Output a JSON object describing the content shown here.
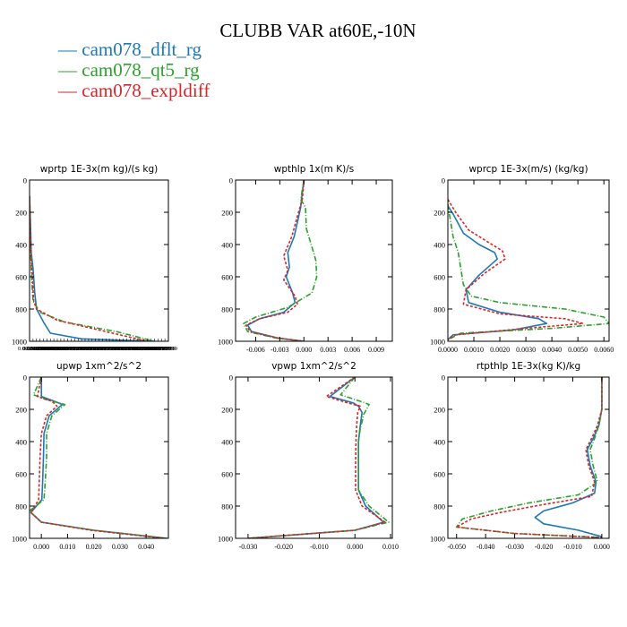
{
  "title": "CLUBB VAR at60E,-10N",
  "legend": [
    {
      "name": "cam078_dflt_rg",
      "color": "#1f77b4"
    },
    {
      "name": "cam078_qt5_rg",
      "color": "#2ca02c"
    },
    {
      "name": "cam078_expldiff",
      "color": "#d62728"
    }
  ],
  "chart_data": [
    {
      "type": "line",
      "title": "wprtp   1E-3x(m kg)/(s kg)",
      "xlim": [
        0.0,
        0.04
      ],
      "ylim": [
        1000,
        0
      ],
      "yticks": [
        0,
        200,
        400,
        600,
        800,
        1000
      ],
      "xtick_labels": [
        "0.000000",
        "0.000999999",
        "0.00199999",
        "0.00299999",
        "0.00399999",
        "0.00499999",
        "0.00599999",
        "0.00699999",
        "0.00799999",
        "0.00899999",
        "0.00999999",
        "0.0109999",
        "0.0119999",
        "0.0129999",
        "0.0139999",
        "0.0149999",
        "0.0159999",
        "0.0169999",
        "0.0179999",
        "0.0189999",
        "0.0199999",
        "0.0209999",
        "0.0219999",
        "0.0229999",
        "0.0239999",
        "0.0249999",
        "0.0259999",
        "0.0269999",
        "0.0279999",
        "0.0289999",
        "0.0299999",
        "0.0309999",
        "0.0319999",
        "0.0329999",
        "0.0339999",
        "0.0349999",
        "0.0359999",
        "0.0369999",
        "0.0379999",
        "0.0389999",
        "0.0399999"
      ],
      "series": [
        {
          "name": "cam078_dflt_rg",
          "x": [
            0.0,
            0.0003,
            0.0005,
            0.001,
            0.0015,
            0.002,
            0.004,
            0.006,
            0.015,
            0.036
          ],
          "y": [
            100,
            300,
            450,
            550,
            700,
            800,
            880,
            950,
            985,
            1000
          ]
        },
        {
          "name": "cam078_qt5_rg",
          "x": [
            0.0,
            0.0001,
            0.0003,
            0.0006,
            0.001,
            0.003,
            0.01,
            0.025,
            0.036
          ],
          "y": [
            100,
            300,
            450,
            600,
            750,
            820,
            880,
            940,
            1000
          ]
        },
        {
          "name": "cam078_expldiff",
          "x": [
            0.0,
            0.0002,
            0.0004,
            0.0008,
            0.0012,
            0.002,
            0.008,
            0.02,
            0.034
          ],
          "y": [
            100,
            300,
            450,
            600,
            750,
            800,
            870,
            930,
            1000
          ]
        }
      ]
    },
    {
      "type": "line",
      "title": "wpthlp   1x(m K)/s",
      "xlim": [
        -0.0085,
        0.011
      ],
      "ylim": [
        1000,
        0
      ],
      "yticks": [
        0,
        200,
        400,
        600,
        800,
        1000
      ],
      "xticks": [
        -0.006,
        -0.003,
        0.0,
        0.003,
        0.006,
        0.009
      ],
      "xtick_labels": [
        "-0.006",
        "-0.003",
        "0.000",
        "0.003",
        "0.006",
        "0.009"
      ],
      "series": [
        {
          "name": "cam078_dflt_rg",
          "x": [
            0.0,
            -0.0003,
            -0.0004,
            -0.0012,
            -0.002,
            -0.0018,
            -0.0022,
            -0.0014,
            -0.0011,
            -0.0025,
            -0.0055,
            -0.007,
            -0.0065,
            -0.0032,
            0.0
          ],
          "y": [
            0,
            120,
            170,
            350,
            450,
            540,
            600,
            700,
            760,
            820,
            860,
            900,
            940,
            980,
            1000
          ]
        },
        {
          "name": "cam078_qt5_rg",
          "x": [
            0.0,
            -0.0004,
            0.0002,
            0.0003,
            0.0009,
            0.0012,
            0.0015,
            0.0016,
            0.001,
            -0.002,
            -0.006,
            -0.0075,
            -0.007,
            -0.0035,
            0.0
          ],
          "y": [
            0,
            120,
            170,
            300,
            400,
            450,
            500,
            600,
            700,
            790,
            850,
            890,
            940,
            980,
            1000
          ]
        },
        {
          "name": "cam078_expldiff",
          "x": [
            0.0,
            -0.0002,
            -0.0005,
            -0.0015,
            -0.0025,
            -0.002,
            -0.0025,
            -0.0011,
            -0.0008,
            -0.002,
            -0.0055,
            -0.0072,
            -0.0067,
            -0.0033,
            0.0
          ],
          "y": [
            0,
            120,
            170,
            350,
            470,
            560,
            620,
            720,
            770,
            820,
            860,
            900,
            940,
            980,
            1000
          ]
        }
      ]
    },
    {
      "type": "line",
      "title": "wprcp   1E-3x(m/s) (kg/kg)",
      "xlim": [
        0.0,
        0.0062
      ],
      "ylim": [
        1000,
        0
      ],
      "yticks": [
        0,
        200,
        400,
        600,
        800,
        1000
      ],
      "xticks": [
        0.0,
        0.001,
        0.002,
        0.003,
        0.004,
        0.005,
        0.006
      ],
      "xtick_labels": [
        "0.0000",
        "0.0010",
        "0.0020",
        "0.0030",
        "0.0040",
        "0.0050",
        "0.0060"
      ],
      "series": [
        {
          "name": "cam078_dflt_rg",
          "x": [
            0.0,
            0.0002,
            0.0006,
            0.0012,
            0.0018,
            0.0019,
            0.0012,
            0.0007,
            0.0008,
            0.002,
            0.0035,
            0.0038,
            0.0025,
            0.0002,
            0.0
          ],
          "y": [
            160,
            210,
            330,
            400,
            450,
            490,
            590,
            680,
            760,
            820,
            860,
            890,
            930,
            960,
            990
          ]
        },
        {
          "name": "cam078_qt5_rg",
          "x": [
            0.0,
            0.0001,
            0.0002,
            0.0004,
            0.0005,
            0.0006,
            0.0009,
            0.002,
            0.0045,
            0.006,
            0.0062,
            0.004,
            0.0005,
            0.0
          ],
          "y": [
            150,
            250,
            350,
            450,
            550,
            650,
            720,
            760,
            800,
            850,
            890,
            920,
            950,
            990
          ]
        },
        {
          "name": "cam078_expldiff",
          "x": [
            0.0,
            0.0003,
            0.0008,
            0.0015,
            0.0021,
            0.0022,
            0.0014,
            0.0007,
            0.0006,
            0.002,
            0.0045,
            0.0052,
            0.003,
            0.0003,
            0.0
          ],
          "y": [
            120,
            200,
            310,
            380,
            440,
            490,
            580,
            680,
            770,
            830,
            860,
            890,
            920,
            960,
            990
          ]
        }
      ]
    },
    {
      "type": "line",
      "title": "upwp   1xm^2/s^2",
      "xlim": [
        -0.0045,
        0.0485
      ],
      "ylim": [
        1000,
        0
      ],
      "yticks": [
        0,
        200,
        400,
        600,
        800,
        1000
      ],
      "xticks": [
        0.0,
        0.01,
        0.02,
        0.03,
        0.04
      ],
      "xtick_labels": [
        "0.000",
        "0.010",
        "0.020",
        "0.030",
        "0.040"
      ],
      "series": [
        {
          "name": "cam078_dflt_rg",
          "x": [
            0.0,
            0.0,
            0.005,
            0.008,
            0.003,
            0.001,
            0.0008,
            0.0005,
            0.0002,
            -0.004,
            0.0,
            0.02,
            0.048
          ],
          "y": [
            0,
            120,
            150,
            170,
            240,
            350,
            500,
            650,
            760,
            840,
            900,
            950,
            1000
          ]
        },
        {
          "name": "cam078_qt5_rg",
          "x": [
            0.0,
            -0.003,
            0.002,
            0.009,
            0.004,
            0.002,
            0.002,
            0.0015,
            0.001,
            -0.0045,
            0.0,
            0.02,
            0.048
          ],
          "y": [
            0,
            110,
            140,
            170,
            240,
            350,
            500,
            650,
            760,
            830,
            900,
            950,
            1000
          ]
        },
        {
          "name": "cam078_expldiff",
          "x": [
            0.0,
            -0.0015,
            0.004,
            0.006,
            0.002,
            0.0,
            -0.0005,
            -0.0008,
            -0.001,
            -0.004,
            0.0,
            0.019,
            0.047
          ],
          "y": [
            0,
            120,
            150,
            180,
            240,
            350,
            500,
            650,
            760,
            840,
            900,
            950,
            1000
          ]
        }
      ]
    },
    {
      "type": "line",
      "title": "vpwp   1xm^2/s^2",
      "xlim": [
        -0.0335,
        0.0105
      ],
      "ylim": [
        1000,
        0
      ],
      "yticks": [
        0,
        200,
        400,
        600,
        800,
        1000
      ],
      "xticks": [
        -0.03,
        -0.02,
        -0.01,
        0.0,
        0.01
      ],
      "xtick_labels": [
        "-0.030",
        "-0.020",
        "-0.010",
        "0.000",
        "0.010"
      ],
      "series": [
        {
          "name": "cam078_dflt_rg",
          "x": [
            0.0,
            -0.007,
            -0.0005,
            0.001,
            0.002,
            0.0015,
            0.001,
            0.001,
            0.001,
            0.003,
            0.008,
            0.0,
            -0.03
          ],
          "y": [
            0,
            120,
            160,
            180,
            220,
            300,
            400,
            550,
            700,
            800,
            900,
            950,
            1000
          ]
        },
        {
          "name": "cam078_qt5_rg",
          "x": [
            0.0,
            -0.004,
            0.0015,
            0.004,
            0.0025,
            0.0015,
            0.001,
            0.001,
            0.001,
            0.004,
            0.0095,
            0.0,
            -0.03
          ],
          "y": [
            0,
            110,
            150,
            170,
            230,
            320,
            400,
            550,
            700,
            800,
            900,
            950,
            1000
          ]
        },
        {
          "name": "cam078_expldiff",
          "x": [
            0.0,
            -0.008,
            -0.002,
            0.0015,
            0.0008,
            0.0005,
            0.0003,
            0.0002,
            0.0002,
            0.002,
            0.0085,
            0.0,
            -0.03
          ],
          "y": [
            0,
            120,
            160,
            180,
            220,
            300,
            400,
            550,
            700,
            800,
            900,
            950,
            1000
          ]
        }
      ]
    },
    {
      "type": "line",
      "title": "rtpthlp   1E-3x(kg K)/kg",
      "xlim": [
        -0.053,
        0.0025
      ],
      "ylim": [
        1000,
        0
      ],
      "yticks": [
        0,
        200,
        400,
        600,
        800,
        1000
      ],
      "xticks": [
        -0.05,
        -0.04,
        -0.03,
        -0.02,
        -0.01,
        0.0
      ],
      "xtick_labels": [
        "-0.050",
        "-0.040",
        "-0.030",
        "-0.020",
        "-0.010",
        "0.000"
      ],
      "series": [
        {
          "name": "cam078_dflt_rg",
          "x": [
            0.0,
            0.0,
            -0.001,
            -0.003,
            -0.005,
            -0.004,
            -0.002,
            -0.0025,
            -0.01,
            -0.02,
            -0.023,
            -0.02,
            -0.008,
            0.0
          ],
          "y": [
            0,
            200,
            300,
            380,
            450,
            550,
            650,
            720,
            780,
            830,
            870,
            910,
            950,
            990
          ]
        },
        {
          "name": "cam078_qt5_rg",
          "x": [
            0.0,
            0.0,
            -0.001,
            -0.0025,
            -0.004,
            -0.003,
            -0.0015,
            -0.008,
            -0.025,
            -0.038,
            -0.048,
            -0.05,
            -0.03,
            0.0
          ],
          "y": [
            0,
            200,
            300,
            380,
            450,
            550,
            650,
            730,
            780,
            830,
            880,
            930,
            970,
            995
          ]
        },
        {
          "name": "cam078_expldiff",
          "x": [
            0.0,
            0.0,
            -0.0015,
            -0.0035,
            -0.0055,
            -0.0045,
            -0.0025,
            -0.0035,
            -0.02,
            -0.035,
            -0.045,
            -0.05,
            -0.03,
            0.0
          ],
          "y": [
            0,
            200,
            300,
            380,
            450,
            550,
            650,
            740,
            790,
            840,
            880,
            930,
            970,
            995
          ]
        }
      ]
    }
  ]
}
